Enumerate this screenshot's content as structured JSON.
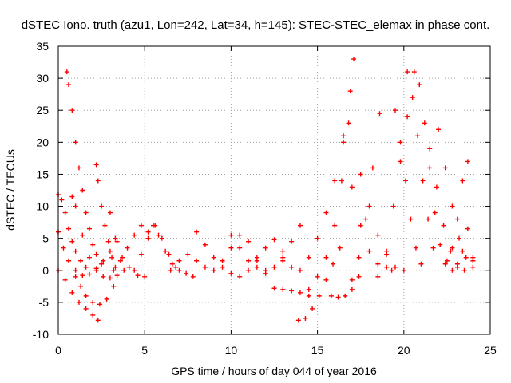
{
  "chart_data": {
    "type": "scatter",
    "title": "dSTEC Iono. truth (azu1, Lon=242, Lat=34, h=145): STEC-STEC_elemax in phase cont.",
    "xlabel": "GPS time / hours of day 044 of year 2016",
    "ylabel": "dSTEC  / TECUs",
    "xlim": [
      0,
      25
    ],
    "ylim": [
      -10,
      35
    ],
    "xticks": [
      0,
      5,
      10,
      15,
      20,
      25
    ],
    "yticks": [
      -10,
      -5,
      0,
      5,
      10,
      15,
      20,
      25,
      30,
      35
    ],
    "xtick_labels": [
      "0",
      "5",
      "10",
      "15",
      "20",
      "25"
    ],
    "ytick_labels": [
      "-10",
      "-5",
      "0",
      "5",
      "10",
      "15",
      "20",
      "25",
      "30",
      "35"
    ],
    "grid": true,
    "marker": "+",
    "marker_color": "#ff0000",
    "series": [
      {
        "x": [
          0.0,
          0.3,
          0.6,
          1.0,
          1.4,
          1.8,
          2.2,
          2.6,
          3.0,
          3.4
        ],
        "y": [
          6.0,
          3.5,
          1.5,
          0.0,
          -0.8,
          -0.6,
          0.3,
          1.5,
          3.0,
          4.5
        ]
      },
      {
        "x": [
          0.0,
          0.4,
          0.8,
          1.2,
          1.6,
          2.0,
          2.3
        ],
        "y": [
          0.0,
          -1.5,
          -3.5,
          -5.0,
          -6.0,
          -7.0,
          -7.8
        ]
      },
      {
        "x": [
          0.0,
          0.2,
          0.4,
          0.6,
          0.8,
          1.0,
          1.3,
          1.6
        ],
        "y": [
          11.8,
          11.0,
          9.0,
          6.5,
          4.5,
          3.0,
          1.5,
          0.5
        ]
      },
      {
        "x": [
          0.5,
          0.6,
          0.8,
          1.0,
          1.2,
          1.4,
          1.6,
          1.8,
          2.0,
          2.2,
          2.5
        ],
        "y": [
          31.0,
          29.0,
          25.0,
          20.0,
          16.0,
          12.5,
          9.0,
          6.5,
          4.0,
          2.5,
          1.0
        ]
      },
      {
        "x": [
          0.8,
          1.0,
          1.4,
          1.8,
          2.2,
          2.6,
          3.0,
          3.4,
          3.8
        ],
        "y": [
          11.5,
          10.0,
          5.5,
          2.0,
          0.0,
          -1.0,
          -1.2,
          -0.8,
          0.0
        ]
      },
      {
        "x": [
          1.0,
          1.3,
          1.6,
          2.0,
          2.4,
          2.8,
          3.2
        ],
        "y": [
          -1.0,
          -2.5,
          -4.0,
          -5.0,
          -5.3,
          -4.5,
          -2.5
        ]
      },
      {
        "x": [
          2.2,
          2.3,
          2.5,
          2.7,
          2.9,
          3.1,
          3.3
        ],
        "y": [
          16.5,
          14.0,
          10.0,
          7.0,
          4.5,
          2.0,
          0.5
        ]
      },
      {
        "x": [
          3.0,
          3.3,
          3.7,
          4.1,
          4.6,
          5.0
        ],
        "y": [
          9.0,
          5.0,
          2.0,
          0.5,
          -0.8,
          -1.0
        ]
      },
      {
        "x": [
          3.2,
          3.6,
          4.0,
          4.4,
          4.8,
          5.2
        ],
        "y": [
          0.0,
          1.5,
          3.5,
          5.5,
          7.0,
          6.0
        ]
      },
      {
        "x": [
          4.4,
          4.8,
          5.2,
          5.6,
          6.0,
          6.4,
          6.8
        ],
        "y": [
          0.0,
          2.5,
          5.0,
          7.0,
          5.0,
          2.5,
          0.5
        ]
      },
      {
        "x": [
          5.5,
          5.8,
          6.2,
          6.6,
          7.0,
          7.4,
          7.8
        ],
        "y": [
          7.0,
          5.5,
          3.0,
          1.0,
          0.0,
          -0.5,
          -1.0
        ]
      },
      {
        "x": [
          6.5,
          7.0,
          7.5,
          8.0,
          8.5,
          9.0
        ],
        "y": [
          0.0,
          1.5,
          2.5,
          1.5,
          0.5,
          0.0
        ]
      },
      {
        "x": [
          8.0,
          8.5,
          9.0,
          9.5,
          10.0,
          10.5
        ],
        "y": [
          6.0,
          4.0,
          2.0,
          0.5,
          -0.5,
          -1.0
        ]
      },
      {
        "x": [
          9.0,
          9.5,
          10.0,
          10.5,
          11.0,
          11.5
        ],
        "y": [
          0.0,
          1.5,
          3.5,
          5.5,
          4.5,
          2.0
        ]
      },
      {
        "x": [
          10.0,
          10.5,
          11.0,
          11.5,
          12.0,
          12.5,
          13.0
        ],
        "y": [
          5.5,
          3.5,
          1.5,
          0.5,
          0.0,
          0.5,
          1.5
        ]
      },
      {
        "x": [
          11.0,
          11.5,
          12.0,
          12.5,
          13.0,
          13.5
        ],
        "y": [
          0.0,
          1.5,
          3.5,
          4.8,
          3.0,
          0.5
        ]
      },
      {
        "x": [
          12.0,
          12.5,
          13.0,
          13.5,
          14.0
        ],
        "y": [
          -0.5,
          0.5,
          2.0,
          4.5,
          7.0
        ]
      },
      {
        "x": [
          12.5,
          13.0,
          13.5,
          14.0,
          14.5
        ],
        "y": [
          -2.8,
          -3.0,
          -3.2,
          -3.5,
          -4.0
        ]
      },
      {
        "x": [
          13.9,
          14.3,
          14.7,
          15.1,
          15.5,
          15.9,
          16.3
        ],
        "y": [
          -7.8,
          -7.5,
          -6.0,
          -4.0,
          -1.5,
          1.0,
          3.5
        ]
      },
      {
        "x": [
          14.0,
          14.5,
          15.0,
          15.5,
          16.0,
          16.5,
          16.9
        ],
        "y": [
          0.0,
          2.0,
          5.0,
          9.0,
          14.0,
          21.0,
          28.0
        ]
      },
      {
        "x": [
          14.5,
          15.0,
          15.5,
          16.0,
          16.4,
          16.8,
          17.1
        ],
        "y": [
          -3.0,
          -1.0,
          2.0,
          7.0,
          14.0,
          23.0,
          33.0
        ]
      },
      {
        "x": [
          15.8,
          16.2,
          16.6,
          17.0,
          17.4
        ],
        "y": [
          -4.0,
          -4.2,
          -4.0,
          -3.0,
          -1.0
        ]
      },
      {
        "x": [
          17.0,
          17.4,
          17.8,
          18.2,
          18.6
        ],
        "y": [
          -1.5,
          2.0,
          8.0,
          16.0,
          24.5
        ]
      },
      {
        "x": [
          16.5,
          17.0,
          17.5,
          18.0,
          18.5,
          19.0,
          19.3
        ],
        "y": [
          20.0,
          13.0,
          7.0,
          3.0,
          1.0,
          0.5,
          0.0
        ]
      },
      {
        "x": [
          17.5,
          18.0,
          18.5,
          19.0,
          19.5,
          20.0
        ],
        "y": [
          15.0,
          10.0,
          5.5,
          2.5,
          0.5,
          0.0
        ]
      },
      {
        "x": [
          18.5,
          19.0,
          19.4,
          19.8,
          20.2,
          20.6
        ],
        "y": [
          -1.0,
          3.0,
          10.0,
          17.0,
          24.0,
          31.0
        ]
      },
      {
        "x": [
          19.5,
          19.8,
          20.1,
          20.4,
          20.7,
          21.0
        ],
        "y": [
          25.0,
          20.0,
          14.0,
          8.0,
          3.5,
          1.0
        ]
      },
      {
        "x": [
          20.2,
          20.5,
          20.8,
          21.1,
          21.4,
          21.7
        ],
        "y": [
          31.0,
          27.0,
          21.0,
          14.0,
          8.0,
          3.5
        ]
      },
      {
        "x": [
          20.9,
          21.2,
          21.5,
          21.8,
          22.1,
          22.4
        ],
        "y": [
          29.0,
          23.0,
          16.0,
          9.0,
          4.0,
          1.0
        ]
      },
      {
        "x": [
          21.5,
          21.9,
          22.3,
          22.7,
          23.1,
          23.5
        ],
        "y": [
          19.0,
          13.0,
          7.0,
          3.0,
          0.5,
          0.0
        ]
      },
      {
        "x": [
          22.0,
          22.4,
          22.8,
          23.2,
          23.6,
          24.0
        ],
        "y": [
          22.0,
          16.0,
          10.0,
          5.0,
          2.0,
          1.5
        ]
      },
      {
        "x": [
          22.5,
          22.8,
          23.1,
          23.4,
          23.7,
          24.0
        ],
        "y": [
          1.5,
          3.5,
          8.0,
          14.0,
          17.0,
          2.0
        ]
      },
      {
        "x": [
          22.8,
          23.1,
          23.4,
          23.7,
          24.0
        ],
        "y": [
          0.0,
          1.0,
          3.0,
          6.5,
          0.5
        ]
      }
    ]
  }
}
